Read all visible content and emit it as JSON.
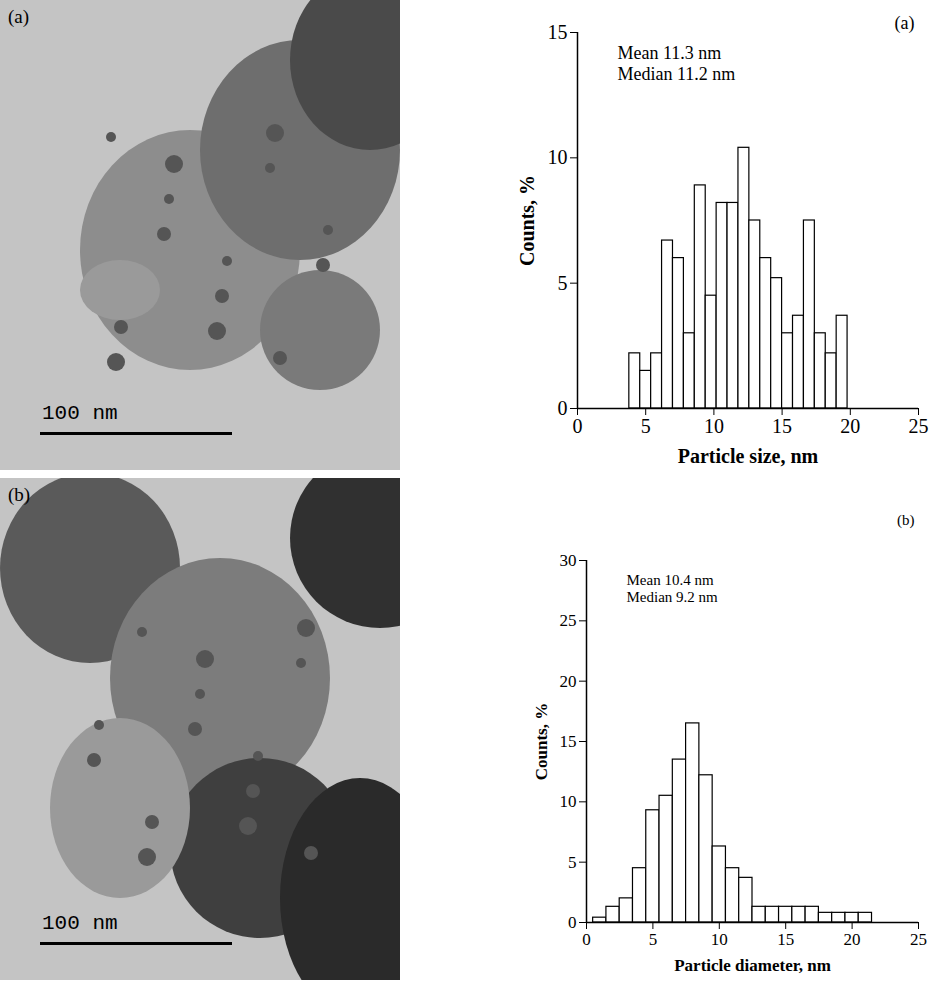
{
  "images": [
    {
      "label": "(a)",
      "scale_bar": "100 nm"
    },
    {
      "label": "(b)",
      "scale_bar": "100 nm"
    }
  ],
  "chart_data": [
    {
      "type": "histogram",
      "title": "(a)",
      "annotations": [
        "Mean 11.3 nm",
        "Median 11.2 nm"
      ],
      "x_label": "Particle size, nm",
      "y_label": "Counts, %",
      "bins": [
        3.8,
        4.6,
        5.4,
        6.2,
        7.0,
        7.8,
        8.6,
        9.4,
        10.2,
        11.0,
        11.8,
        12.6,
        13.4,
        14.2,
        15.0,
        15.8,
        16.6,
        17.4,
        18.2,
        19.0,
        19.8
      ],
      "values": [
        2.2,
        1.5,
        2.2,
        6.7,
        6.0,
        3.0,
        8.9,
        4.5,
        8.2,
        8.2,
        10.4,
        7.5,
        6.0,
        5.2,
        3.0,
        3.7,
        7.5,
        3.0,
        2.2,
        3.7
      ],
      "color": "#ffffff",
      "xlim": [
        0,
        25
      ],
      "xticks": [
        0,
        5,
        10,
        15,
        20,
        25
      ],
      "ylim": [
        0,
        15
      ],
      "yticks": [
        0,
        5,
        10,
        15
      ],
      "grid": false
    },
    {
      "type": "histogram",
      "title": "(b)",
      "annotations": [
        "Mean 10.4 nm",
        "Median 9.2 nm"
      ],
      "x_label": "Particle diameter, nm",
      "y_label": "Counts, %",
      "bins": [
        0.5,
        1.5,
        2.5,
        3.5,
        4.5,
        5.5,
        6.5,
        7.5,
        8.5,
        9.5,
        10.5,
        11.5,
        12.5,
        13.5,
        14.5,
        15.5,
        16.5,
        17.5,
        18.5,
        19.5,
        20.5,
        21.5
      ],
      "values": [
        0.4,
        1.3,
        2.0,
        4.5,
        9.3,
        10.5,
        13.5,
        16.5,
        12.2,
        6.3,
        4.5,
        3.7,
        1.3,
        1.3,
        1.3,
        1.3,
        1.3,
        0.8,
        0.8,
        0.8,
        0.8
      ],
      "color": "#ffffff",
      "xlim": [
        0,
        25
      ],
      "xticks": [
        0,
        5,
        10,
        15,
        20,
        25
      ],
      "ylim": [
        0,
        30
      ],
      "yticks": [
        0,
        5,
        10,
        15,
        20,
        25,
        30
      ],
      "grid": false
    }
  ]
}
